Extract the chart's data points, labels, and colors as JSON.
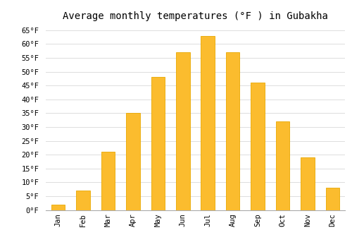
{
  "title": "Average monthly temperatures (°F ) in Gubakha",
  "months": [
    "Jan",
    "Feb",
    "Mar",
    "Apr",
    "May",
    "Jun",
    "Jul",
    "Aug",
    "Sep",
    "Oct",
    "Nov",
    "Dec"
  ],
  "values": [
    2,
    7,
    21,
    35,
    48,
    57,
    63,
    57,
    46,
    32,
    19,
    8
  ],
  "bar_color": "#FBBC2E",
  "bar_edge_color": "#E8A800",
  "background_color": "#ffffff",
  "grid_color": "#dddddd",
  "ylim": [
    0,
    67
  ],
  "yticks": [
    0,
    5,
    10,
    15,
    20,
    25,
    30,
    35,
    40,
    45,
    50,
    55,
    60,
    65
  ],
  "ylabel_suffix": "°F",
  "title_fontsize": 10,
  "tick_fontsize": 7.5,
  "font_family": "monospace",
  "bar_width": 0.55
}
